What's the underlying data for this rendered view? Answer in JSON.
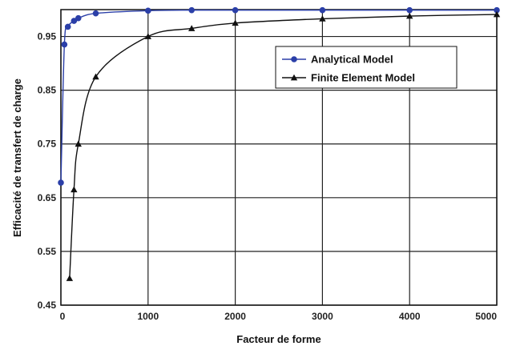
{
  "chart_data": {
    "type": "line",
    "title": "",
    "xlabel": "Facteur de forme",
    "ylabel": "Efficacité de transfert de charge",
    "xlim": [
      0,
      5000
    ],
    "ylim": [
      0.45,
      1.0
    ],
    "x_ticks": [
      "0",
      "1000",
      "2000",
      "3000",
      "4000",
      "5000"
    ],
    "y_ticks": [
      "0.45",
      "0.55",
      "0.65",
      "0.75",
      "0.85",
      "0.95"
    ],
    "grid": true,
    "legend_position": "top-right",
    "series": [
      {
        "name": "Analytical Model",
        "color": "#2b3fa8",
        "marker": "circle",
        "x": [
          0,
          40,
          80,
          150,
          200,
          400,
          1000,
          1500,
          2000,
          3000,
          4000,
          5000
        ],
        "y": [
          0.678,
          0.935,
          0.968,
          0.979,
          0.984,
          0.993,
          0.998,
          0.999,
          0.999,
          0.999,
          0.999,
          0.999
        ]
      },
      {
        "name": "Finite Element Model",
        "color": "#111111",
        "marker": "triangle",
        "x": [
          100,
          150,
          200,
          400,
          1000,
          1500,
          2000,
          3000,
          4000,
          5000
        ],
        "y": [
          0.5,
          0.665,
          0.75,
          0.875,
          0.95,
          0.965,
          0.975,
          0.983,
          0.988,
          0.991
        ]
      }
    ]
  }
}
